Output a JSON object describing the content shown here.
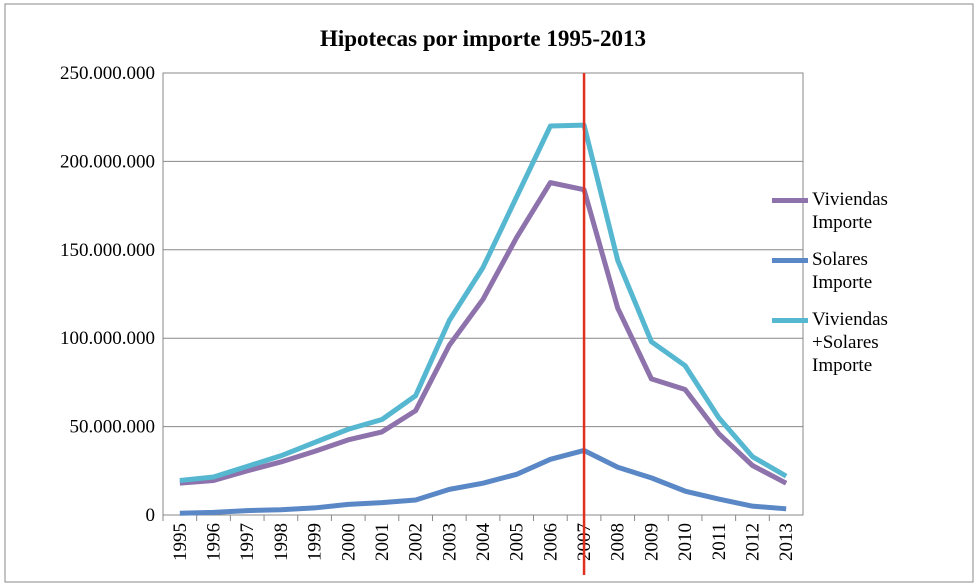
{
  "chart_data": {
    "type": "line",
    "title": "Hipotecas por importe 1995-2013",
    "categories": [
      "1995",
      "1996",
      "1997",
      "1998",
      "1999",
      "2000",
      "2001",
      "2002",
      "2003",
      "2004",
      "2005",
      "2006",
      "2007",
      "2008",
      "2009",
      "2010",
      "2011",
      "2012",
      "2013"
    ],
    "series": [
      {
        "name": "Viviendas Importe",
        "color": "#8e72ab",
        "values": [
          18000000,
          19500000,
          25000000,
          30000000,
          36000000,
          42500000,
          47000000,
          59000000,
          96000000,
          122000000,
          157000000,
          188000000,
          184000000,
          117000000,
          77000000,
          71000000,
          46000000,
          28000000,
          18000000
        ]
      },
      {
        "name": "Solares Importe",
        "color": "#5a87c5",
        "values": [
          1000000,
          1500000,
          2500000,
          3000000,
          4000000,
          6000000,
          7000000,
          8500000,
          14500000,
          18000000,
          23000000,
          31500000,
          36500000,
          27000000,
          21000000,
          13500000,
          9000000,
          5000000,
          3500000
        ]
      },
      {
        "name": "Viviendas +Solares Importe",
        "color": "#56b7d0",
        "values": [
          19500000,
          21500000,
          27500000,
          33500000,
          41000000,
          48500000,
          54000000,
          67500000,
          110000000,
          140000000,
          180000000,
          220000000,
          220500000,
          144000000,
          98000000,
          84500000,
          55000000,
          33000000,
          22000000
        ]
      }
    ],
    "ylim": [
      0,
      250000000
    ],
    "yticks": [
      0,
      {
        "value": 50000000,
        "label": "50.000.000"
      },
      {
        "value": 100000000,
        "label": "100.000.000"
      },
      {
        "value": 150000000,
        "label": "150.000.000"
      },
      {
        "value": 200000000,
        "label": "200.000.000"
      },
      {
        "value": 250000000,
        "label": "250.000.000"
      }
    ],
    "grid": true,
    "legend": "right",
    "vline": {
      "category": "2007",
      "color": "#e0301e"
    }
  }
}
